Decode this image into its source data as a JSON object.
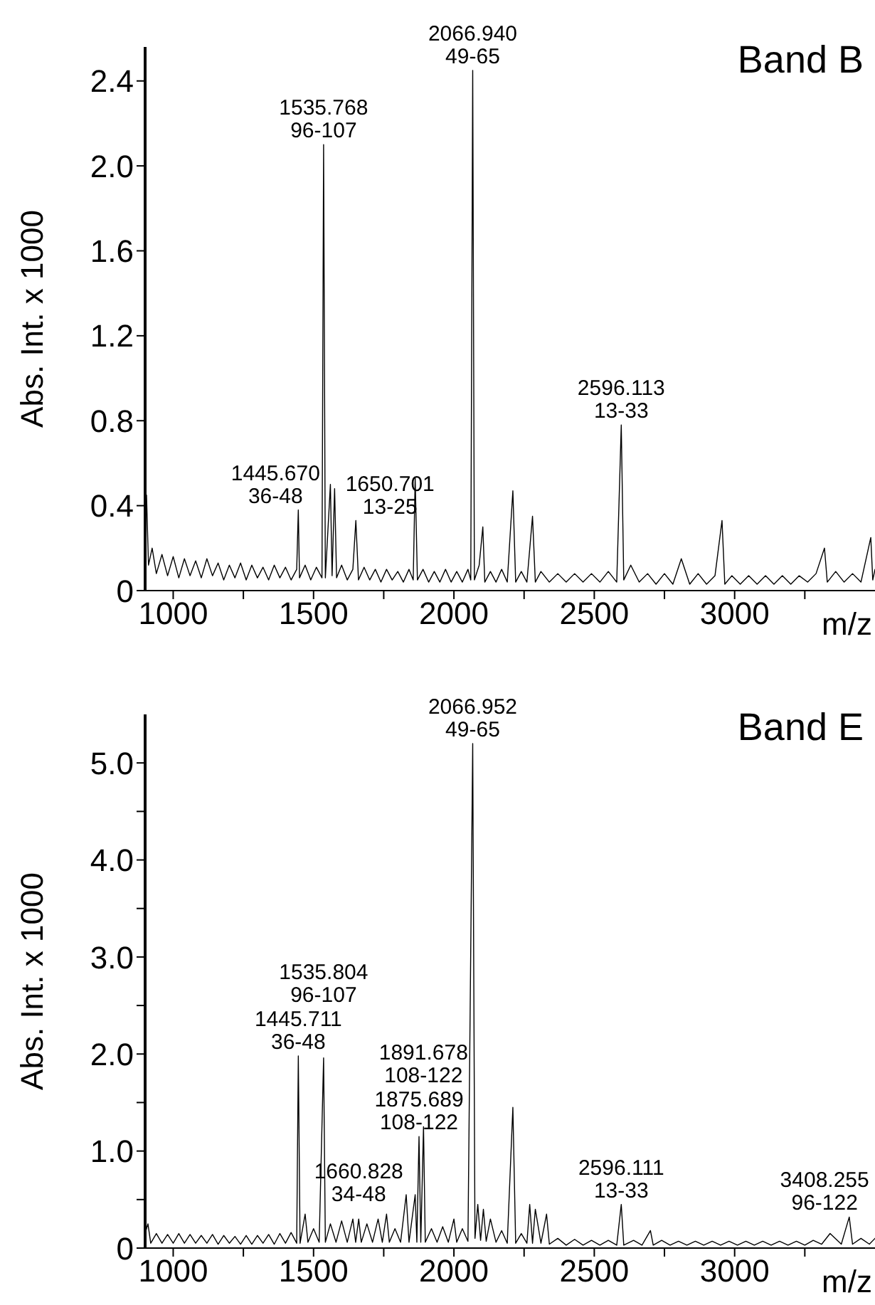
{
  "chart_data": [
    {
      "type": "line",
      "title": "Band B",
      "xlabel": "m/z",
      "ylabel": "Abs. Int. x 1000",
      "xlim": [
        900,
        3500
      ],
      "xticks": [
        1000,
        {
          "value": 1250,
          "label": null
        },
        1500,
        {
          "value": 1750,
          "label": null
        },
        2000,
        {
          "value": 2250,
          "label": null
        },
        2500,
        {
          "value": 2750,
          "label": null
        },
        3000,
        {
          "value": 3250,
          "label": null
        }
      ],
      "ylim": [
        0,
        2.56
      ],
      "yticks": [
        0,
        0.4,
        0.8,
        1.2,
        1.6,
        {
          "value": 2,
          "label": "2.0"
        },
        2.4
      ],
      "x": [
        900,
        905,
        912,
        925,
        940,
        960,
        980,
        1000,
        1020,
        1040,
        1060,
        1080,
        1100,
        1120,
        1140,
        1160,
        1180,
        1200,
        1220,
        1240,
        1260,
        1280,
        1300,
        1320,
        1340,
        1360,
        1380,
        1400,
        1420,
        1440,
        1445.67,
        1450,
        1470,
        1490,
        1510,
        1530,
        1535.768,
        1542,
        1560,
        1566,
        1575,
        1582,
        1600,
        1620,
        1640,
        1650.701,
        1660,
        1680,
        1700,
        1720,
        1740,
        1760,
        1780,
        1800,
        1820,
        1840,
        1855,
        1862,
        1870,
        1890,
        1910,
        1930,
        1950,
        1970,
        1990,
        2010,
        2030,
        2050,
        2060,
        2066.94,
        2073,
        2090,
        2103,
        2110,
        2130,
        2150,
        2170,
        2190,
        2210,
        2220,
        2240,
        2260,
        2280,
        2290,
        2310,
        2340,
        2370,
        2400,
        2430,
        2460,
        2490,
        2520,
        2550,
        2580,
        2596.113,
        2605,
        2630,
        2660,
        2690,
        2720,
        2750,
        2780,
        2810,
        2840,
        2870,
        2900,
        2930,
        2955,
        2965,
        2990,
        3020,
        3050,
        3080,
        3110,
        3140,
        3170,
        3200,
        3230,
        3260,
        3290,
        3320,
        3330,
        3360,
        3390,
        3420,
        3450,
        3485,
        3492,
        3500
      ],
      "series": [
        {
          "color": "#000000",
          "values": [
            0.25,
            0.45,
            0.12,
            0.2,
            0.08,
            0.17,
            0.07,
            0.16,
            0.06,
            0.15,
            0.07,
            0.14,
            0.06,
            0.15,
            0.07,
            0.13,
            0.05,
            0.12,
            0.06,
            0.13,
            0.05,
            0.12,
            0.06,
            0.11,
            0.05,
            0.12,
            0.06,
            0.11,
            0.05,
            0.1,
            0.38,
            0.06,
            0.12,
            0.05,
            0.11,
            0.06,
            2.1,
            0.06,
            0.5,
            0.07,
            0.48,
            0.06,
            0.12,
            0.05,
            0.1,
            0.33,
            0.05,
            0.11,
            0.05,
            0.1,
            0.04,
            0.1,
            0.05,
            0.09,
            0.04,
            0.1,
            0.05,
            0.53,
            0.05,
            0.1,
            0.04,
            0.09,
            0.04,
            0.1,
            0.04,
            0.09,
            0.04,
            0.1,
            0.05,
            2.45,
            0.05,
            0.12,
            0.3,
            0.04,
            0.09,
            0.04,
            0.1,
            0.04,
            0.47,
            0.04,
            0.09,
            0.04,
            0.35,
            0.04,
            0.09,
            0.04,
            0.08,
            0.04,
            0.08,
            0.04,
            0.08,
            0.04,
            0.09,
            0.04,
            0.78,
            0.05,
            0.12,
            0.04,
            0.08,
            0.03,
            0.08,
            0.03,
            0.15,
            0.03,
            0.08,
            0.03,
            0.07,
            0.33,
            0.03,
            0.07,
            0.03,
            0.07,
            0.03,
            0.07,
            0.03,
            0.07,
            0.03,
            0.07,
            0.04,
            0.08,
            0.2,
            0.04,
            0.09,
            0.04,
            0.08,
            0.04,
            0.25,
            0.05,
            0.1
          ]
        }
      ],
      "annotations": [
        {
          "text": "2066.940\n49-65",
          "x": 2066.94,
          "y": 2.45
        },
        {
          "text": "1535.768\n96-107",
          "x": 1535.768,
          "y": 2.1
        },
        {
          "text": "1650.701\n13-25",
          "x": 1650.701,
          "y": 0.33
        },
        {
          "text": "2596.113\n13-33",
          "x": 2596.113,
          "y": 0.78
        },
        {
          "text": "1445.670\n36-48",
          "x": 1445.67,
          "y": 0.38
        }
      ]
    },
    {
      "type": "line",
      "title": "Band E",
      "xlabel": "m/z",
      "ylabel": "Abs. Int. x 1000",
      "xlim": [
        900,
        3500
      ],
      "xticks": [
        1000,
        {
          "value": 1250,
          "label": null
        },
        1500,
        {
          "value": 1750,
          "label": null
        },
        2000,
        {
          "value": 2250,
          "label": null
        },
        2500,
        {
          "value": 2750,
          "label": null
        },
        3000,
        {
          "value": 3250,
          "label": null
        }
      ],
      "ylim": [
        0,
        5.5
      ],
      "yticks": [
        0,
        {
          "value": 0.5,
          "label": null
        },
        {
          "value": 1,
          "label": "1.0"
        },
        {
          "value": 1.5,
          "label": null
        },
        {
          "value": 2,
          "label": "2.0"
        },
        {
          "value": 2.5,
          "label": null
        },
        {
          "value": 3,
          "label": "3.0"
        },
        {
          "value": 3.5,
          "label": null
        },
        {
          "value": 4,
          "label": "4.0"
        },
        {
          "value": 4.5,
          "label": null
        },
        {
          "value": 5,
          "label": "5.0"
        }
      ],
      "x": [
        900,
        910,
        920,
        940,
        960,
        980,
        1000,
        1020,
        1040,
        1060,
        1080,
        1100,
        1120,
        1140,
        1160,
        1180,
        1200,
        1220,
        1240,
        1260,
        1280,
        1300,
        1320,
        1340,
        1360,
        1380,
        1400,
        1420,
        1440,
        1445.711,
        1452,
        1470,
        1480,
        1500,
        1520,
        1535.804,
        1542,
        1560,
        1580,
        1600,
        1620,
        1640,
        1650,
        1660.828,
        1670,
        1690,
        1710,
        1730,
        1745,
        1760,
        1770,
        1790,
        1810,
        1830,
        1840,
        1862,
        1868,
        1875.689,
        1882,
        1891.678,
        1898,
        1920,
        1940,
        1960,
        1980,
        2000,
        2010,
        2030,
        2050,
        2066.952,
        2075,
        2085,
        2095,
        2105,
        2115,
        2130,
        2150,
        2170,
        2190,
        2210,
        2220,
        2240,
        2260,
        2270,
        2280,
        2290,
        2310,
        2330,
        2340,
        2370,
        2400,
        2430,
        2460,
        2490,
        2520,
        2550,
        2580,
        2596.111,
        2605,
        2640,
        2670,
        2700,
        2710,
        2740,
        2770,
        2800,
        2830,
        2860,
        2890,
        2920,
        2950,
        2980,
        3010,
        3040,
        3070,
        3100,
        3130,
        3160,
        3190,
        3220,
        3250,
        3280,
        3310,
        3340,
        3380,
        3408.255,
        3420,
        3450,
        3480,
        3500
      ],
      "series": [
        {
          "color": "#000000",
          "values": [
            0.15,
            0.25,
            0.05,
            0.15,
            0.05,
            0.14,
            0.05,
            0.15,
            0.05,
            0.14,
            0.05,
            0.13,
            0.05,
            0.14,
            0.04,
            0.13,
            0.05,
            0.12,
            0.04,
            0.13,
            0.04,
            0.13,
            0.05,
            0.14,
            0.04,
            0.15,
            0.05,
            0.16,
            0.05,
            1.98,
            0.05,
            0.35,
            0.06,
            0.2,
            0.06,
            1.96,
            0.06,
            0.25,
            0.06,
            0.28,
            0.06,
            0.3,
            0.06,
            0.3,
            0.06,
            0.25,
            0.06,
            0.3,
            0.06,
            0.35,
            0.06,
            0.2,
            0.06,
            0.55,
            0.06,
            0.55,
            0.06,
            1.15,
            0.06,
            1.25,
            0.06,
            0.2,
            0.06,
            0.22,
            0.06,
            0.3,
            0.06,
            0.2,
            0.07,
            5.2,
            0.1,
            0.45,
            0.08,
            0.4,
            0.07,
            0.3,
            0.06,
            0.18,
            0.05,
            1.45,
            0.05,
            0.15,
            0.05,
            0.45,
            0.05,
            0.4,
            0.05,
            0.35,
            0.04,
            0.1,
            0.03,
            0.09,
            0.03,
            0.08,
            0.03,
            0.08,
            0.03,
            0.45,
            0.03,
            0.08,
            0.03,
            0.18,
            0.03,
            0.08,
            0.03,
            0.07,
            0.03,
            0.07,
            0.03,
            0.07,
            0.03,
            0.07,
            0.03,
            0.07,
            0.03,
            0.07,
            0.03,
            0.07,
            0.03,
            0.07,
            0.03,
            0.08,
            0.04,
            0.15,
            0.04,
            0.32,
            0.04,
            0.1,
            0.04,
            0.1
          ]
        }
      ],
      "annotations": [
        {
          "text": "2066.952\n49-65",
          "x": 2066.952,
          "y": 5.2
        },
        {
          "text": "1445.711\n36-48",
          "x": 1445.711,
          "y": 1.98
        },
        {
          "text": "1535.804\n96-107",
          "x": 1535.804,
          "y": 1.96
        },
        {
          "text": "1891.678\n108-122",
          "x": 1891.678,
          "y": 1.25
        },
        {
          "text": "1875.689\n108-122",
          "x": 1875.689,
          "y": 1.15
        },
        {
          "text": "1660.828\n34-48",
          "x": 1660.828,
          "y": 0.3
        },
        {
          "text": "2596.111\n13-33",
          "x": 2596.111,
          "y": 0.45
        },
        {
          "text": "3408.255\n96-122",
          "x": 3408.255,
          "y": 0.32
        }
      ]
    }
  ]
}
